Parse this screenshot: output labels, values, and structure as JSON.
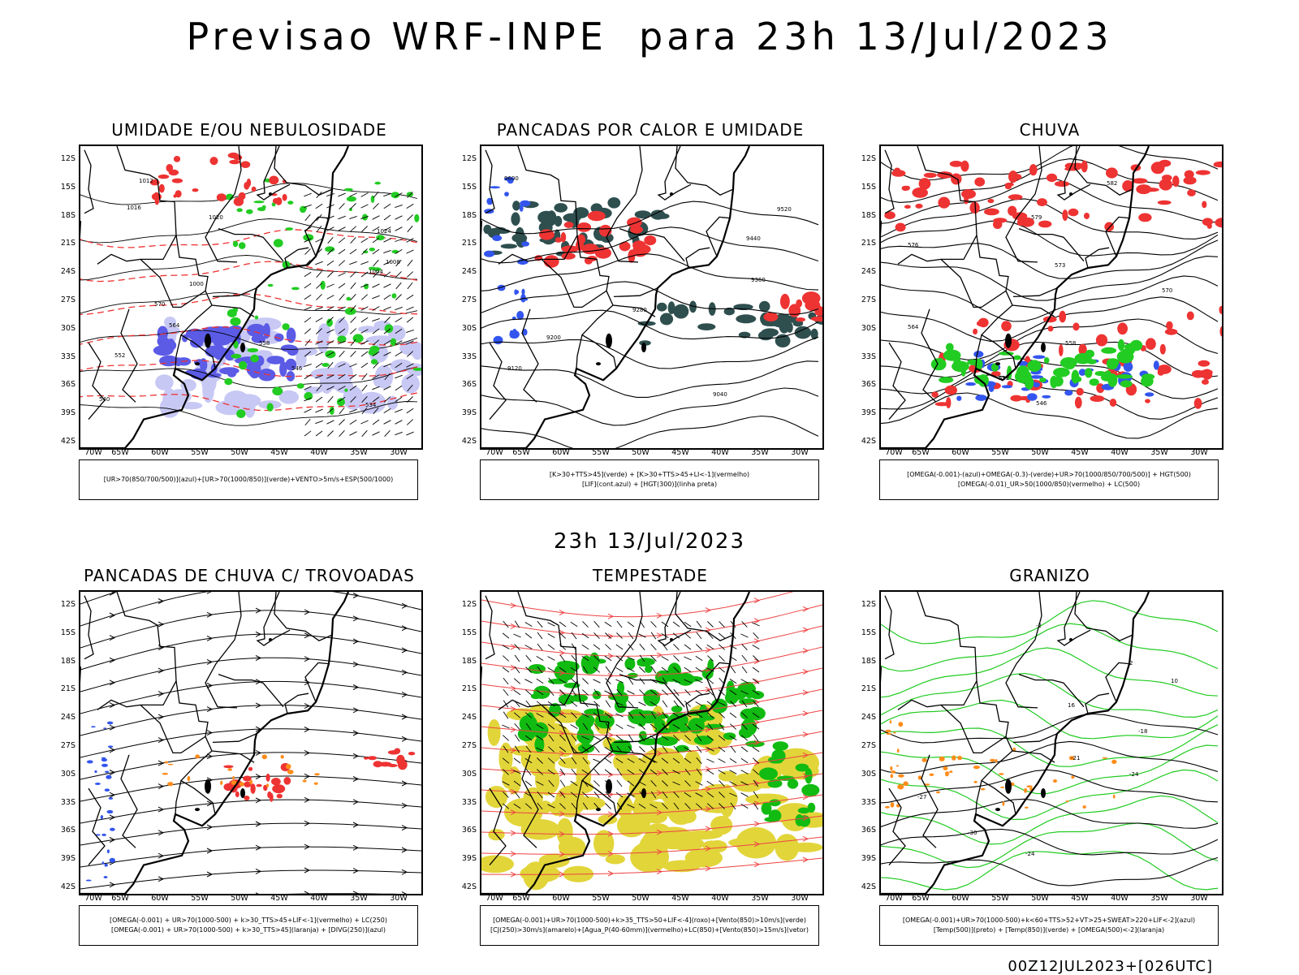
{
  "header": {
    "title": "Previsao WRF-INPE  para 23h 13/Jul/2023"
  },
  "middle": {
    "title": "23h 13/Jul/2023"
  },
  "footer": {
    "run_info": "00Z12JUL2023+[026UTC]"
  },
  "axes": {
    "lat_ticks": [
      "12S",
      "15S",
      "18S",
      "21S",
      "24S",
      "27S",
      "30S",
      "33S",
      "36S",
      "39S",
      "42S"
    ],
    "lon_ticks": [
      "70W",
      "65W",
      "60W",
      "55W",
      "50W",
      "45W",
      "40W",
      "35W",
      "30W"
    ]
  },
  "panels": [
    {
      "title": "UMIDADE E/OU NEBULOSIDADE",
      "caption": [
        "[UR>70(850/700/500)](azul)+[UR>70(1000/850)](verde)+VENTO>5m/s+ESP(500/1000)"
      ],
      "contour_labels": [
        "1012",
        "1016",
        "1020",
        "1024",
        "1008",
        "1004",
        "1000",
        "570",
        "564",
        "558",
        "552",
        "546",
        "540",
        "534"
      ]
    },
    {
      "title": "PANCADAS POR CALOR E UMIDADE",
      "caption": [
        "[K>30+TTS>45](verde) + [K>30+TTS>45+LI<-1](vermelho)",
        "[LIF](cont.azul) + [HGT(300)](linha preta)"
      ],
      "contour_labels": [
        "9600",
        "9520",
        "9440",
        "9360",
        "9280",
        "9200",
        "9120",
        "9040"
      ]
    },
    {
      "title": "CHUVA",
      "caption": [
        "[OMEGA(-0.001)-(azul)+OMEGA(-0.3)-(verde)+UR>70(1000/850/700/500)] + HGT(500)",
        "[OMEGA(-0.01)_UR>50(1000/850)(vermelho) + LC(500)"
      ],
      "contour_labels": [
        "582",
        "579",
        "576",
        "573",
        "570",
        "564",
        "558",
        "552",
        "546"
      ]
    },
    {
      "title": "PANCADAS DE CHUVA C/ TROVOADAS",
      "caption": [
        "[OMEGA(-0.001) + UR>70(1000-500) + k>30_TTS>45+LIF<-1](vermelho) + LC(250)",
        "[OMEGA(-0.001) + UR>70(1000-500) + k>30_TTS>45](laranja) + [DIVG(250)](azul)"
      ],
      "contour_labels": []
    },
    {
      "title": "TEMPESTADE",
      "caption": [
        "[OMEGA(-0.001)+UR>70(1000-500)+k>35_TTS>50+LIF<-4](roxo)+[Vento(850)>10m/s](verde)",
        "[CJ(250)>30m/s](amarelo)+[Agua_P(40-60mm)](vermelho)+LC(850)+[Vento(850)>15m/s](vetor)"
      ],
      "contour_labels": []
    },
    {
      "title": "GRANIZO",
      "caption": [
        "[OMEGA(-0.001)+UR>70(1000-500)+k<60+TTS>52+VT>25+SWEAT>220+LIF<-2](azul)",
        "[Temp(500)](preto) + [Temp(850)](verde) + [OMEGA(500)<-2](laranja)"
      ],
      "contour_labels": [
        "-2",
        "2",
        "10",
        "16",
        "-18",
        "-21",
        "-24",
        "-27",
        "-30",
        "-24"
      ]
    }
  ],
  "colors": {
    "blue_humidity": "#5b5be6",
    "light_blue": "#c8c8f5",
    "green": "#22cc22",
    "red": "#ee3333",
    "dark_teal": "#2f4f4f",
    "orange": "#ff8c1a",
    "yellow": "#e2d53a",
    "bright_green": "#11bb11"
  }
}
